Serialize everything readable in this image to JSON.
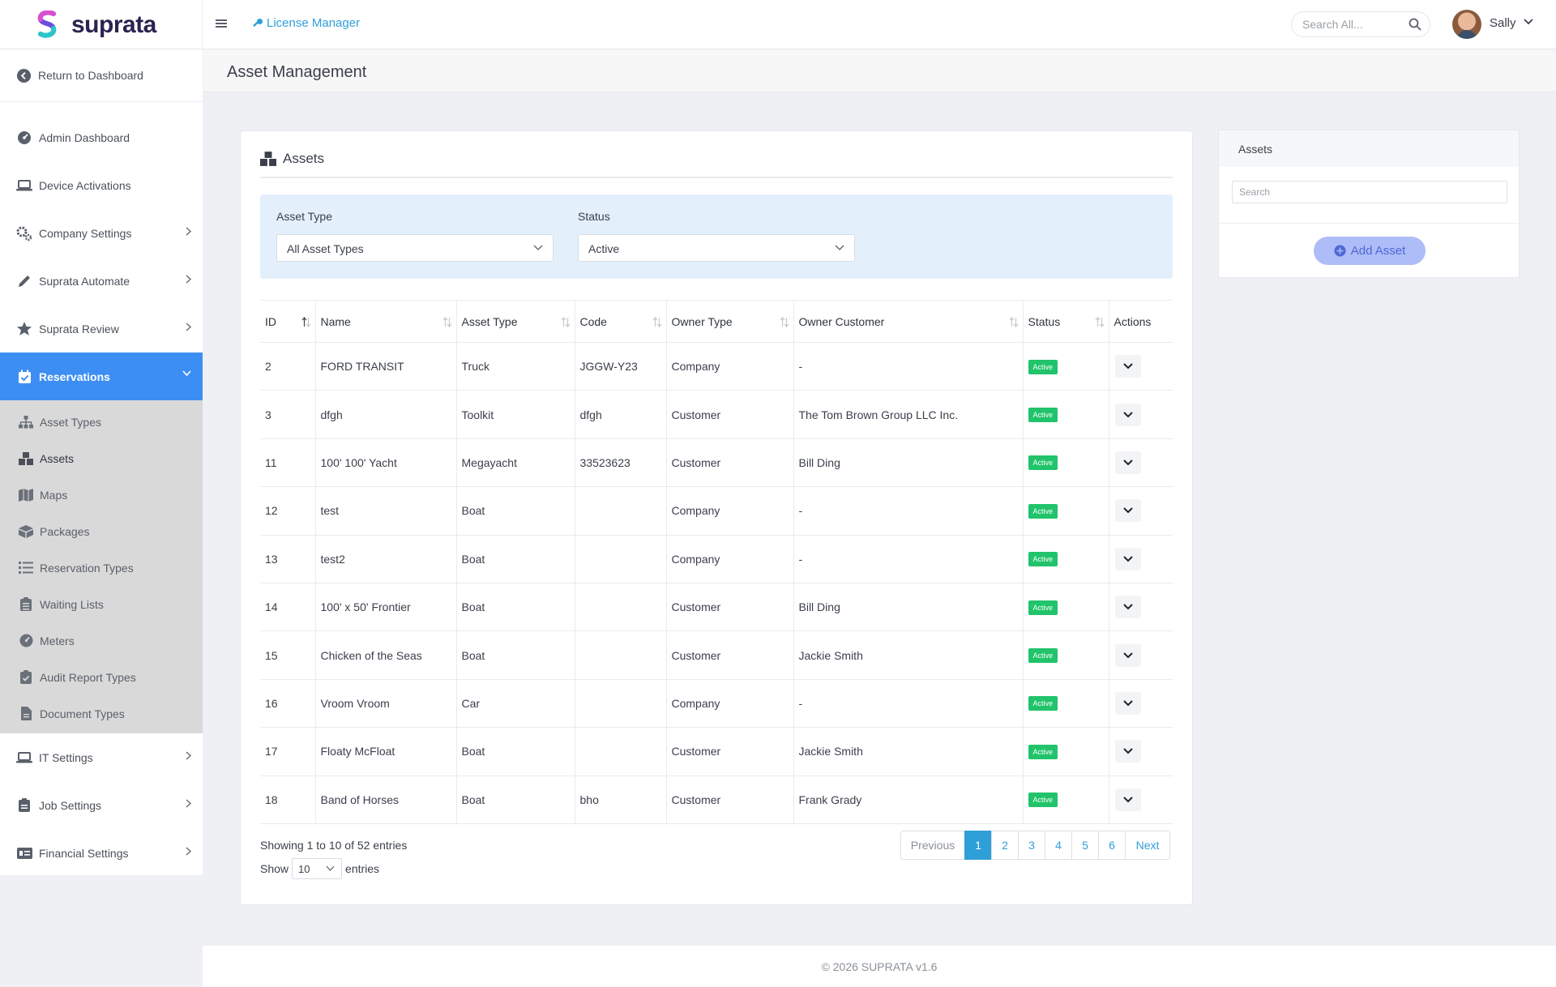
{
  "brand": {
    "name": "suprata"
  },
  "topbar": {
    "breadcrumb": "License Manager",
    "search_placeholder": "Search All...",
    "user_name": "Sally"
  },
  "sidebar": {
    "return_label": "Return to Dashboard",
    "items_top": [
      {
        "label": "Admin Dashboard",
        "icon": "dashboard-icon"
      },
      {
        "label": "Device Activations",
        "icon": "laptop-icon"
      },
      {
        "label": "Company Settings",
        "icon": "gears-icon"
      },
      {
        "label": "Suprata Automate",
        "icon": "pen-icon"
      },
      {
        "label": "Suprata Review",
        "icon": "star-icon"
      }
    ],
    "active": {
      "label": "Reservations",
      "icon": "calendar-check-icon"
    },
    "sub_items": [
      {
        "label": "Asset Types",
        "icon": "sitemap-icon"
      },
      {
        "label": "Assets",
        "icon": "boxes-icon"
      },
      {
        "label": "Maps",
        "icon": "map-icon"
      },
      {
        "label": "Packages",
        "icon": "package-icon"
      },
      {
        "label": "Reservation Types",
        "icon": "list-icon"
      },
      {
        "label": "Waiting Lists",
        "icon": "clipboard-list-icon"
      },
      {
        "label": "Meters",
        "icon": "gauge-icon"
      },
      {
        "label": "Audit Report Types",
        "icon": "clipboard-check-icon"
      },
      {
        "label": "Document Types",
        "icon": "file-icon"
      }
    ],
    "items_bottom": [
      {
        "label": "IT Settings",
        "icon": "laptop-icon"
      },
      {
        "label": "Job Settings",
        "icon": "clipboard-icon"
      },
      {
        "label": "Financial Settings",
        "icon": "money-icon"
      }
    ]
  },
  "page": {
    "title": "Asset Management"
  },
  "card": {
    "title": "Assets",
    "filters": {
      "asset_type_label": "Asset Type",
      "asset_type_value": "All Asset Types",
      "status_label": "Status",
      "status_value": "Active"
    },
    "columns": [
      "ID",
      "Name",
      "Asset Type",
      "Code",
      "Owner Type",
      "Owner Customer",
      "Status",
      "Actions"
    ],
    "rows": [
      {
        "id": "2",
        "name": "FORD TRANSIT",
        "asset_type": "Truck",
        "code": "JGGW-Y23",
        "owner_type": "Company",
        "owner_customer": "-",
        "status": "Active"
      },
      {
        "id": "3",
        "name": "dfgh",
        "asset_type": "Toolkit",
        "code": "dfgh",
        "owner_type": "Customer",
        "owner_customer": "The Tom Brown Group LLC Inc.",
        "status": "Active"
      },
      {
        "id": "11",
        "name": "100' 100' Yacht",
        "asset_type": "Megayacht",
        "code": "33523623",
        "owner_type": "Customer",
        "owner_customer": "Bill Ding",
        "status": "Active"
      },
      {
        "id": "12",
        "name": "test",
        "asset_type": "Boat",
        "code": "",
        "owner_type": "Company",
        "owner_customer": "-",
        "status": "Active"
      },
      {
        "id": "13",
        "name": "test2",
        "asset_type": "Boat",
        "code": "",
        "owner_type": "Company",
        "owner_customer": "-",
        "status": "Active"
      },
      {
        "id": "14",
        "name": "100' x 50' Frontier",
        "asset_type": "Boat",
        "code": "",
        "owner_type": "Customer",
        "owner_customer": "Bill Ding",
        "status": "Active"
      },
      {
        "id": "15",
        "name": "Chicken of the Seas",
        "asset_type": "Boat",
        "code": "",
        "owner_type": "Customer",
        "owner_customer": "Jackie Smith",
        "status": "Active"
      },
      {
        "id": "16",
        "name": "Vroom Vroom",
        "asset_type": "Car",
        "code": "",
        "owner_type": "Company",
        "owner_customer": "-",
        "status": "Active"
      },
      {
        "id": "17",
        "name": "Floaty McFloat",
        "asset_type": "Boat",
        "code": "",
        "owner_type": "Customer",
        "owner_customer": "Jackie Smith",
        "status": "Active"
      },
      {
        "id": "18",
        "name": "Band of Horses",
        "asset_type": "Boat",
        "code": "bho",
        "owner_type": "Customer",
        "owner_customer": "Frank Grady",
        "status": "Active"
      }
    ],
    "info": "Showing 1 to 10 of 52 entries",
    "show_label": "Show",
    "page_length": "10",
    "entries_label": "entries",
    "pagination": {
      "previous": "Previous",
      "pages": [
        "1",
        "2",
        "3",
        "4",
        "5",
        "6"
      ],
      "current": "1",
      "next": "Next"
    }
  },
  "right_panel": {
    "title": "Assets",
    "search_placeholder": "Search",
    "add_button": "Add Asset"
  },
  "footer": {
    "text": "© 2026 SUPRATA v1.6"
  },
  "colors": {
    "accent": "#3d8ef3",
    "link": "#2f9fd8",
    "status_active": "#21c36b",
    "add_button_bg": "#aebcf7",
    "filter_bg": "#e3effb"
  }
}
